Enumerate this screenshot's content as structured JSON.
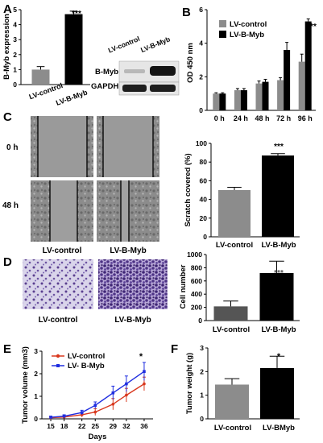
{
  "panels": {
    "A": {
      "letter": "A",
      "chart_data": {
        "type": "bar",
        "categories": [
          "LV-control",
          "LV-B-Myb"
        ],
        "values": [
          1.0,
          4.7
        ],
        "errors": [
          0.2,
          0.2
        ],
        "ylabel": "B-Myb expression",
        "ylim": [
          0,
          5
        ],
        "yticks": [
          "0",
          "1",
          "2",
          "3",
          "4",
          "5"
        ],
        "significance": "***"
      },
      "blot": {
        "lane_labels": [
          "LV-control",
          "LV-B-Myb"
        ],
        "rows": [
          "B-Myb",
          "GAPDH"
        ]
      }
    },
    "B": {
      "letter": "B",
      "chart_data": {
        "type": "bar",
        "categories": [
          "0 h",
          "24 h",
          "48 h",
          "72 h",
          "96 h"
        ],
        "series": [
          {
            "name": "LV-control",
            "values": [
              1.0,
              1.2,
              1.6,
              1.8,
              2.9
            ],
            "errors": [
              0.05,
              0.1,
              0.15,
              0.15,
              0.45
            ],
            "color": "#8c8c8c"
          },
          {
            "name": "LV-B-Myb",
            "values": [
              1.0,
              1.2,
              1.7,
              3.6,
              5.3
            ],
            "errors": [
              0.05,
              0.1,
              0.15,
              0.45,
              0.15
            ],
            "color": "#000000"
          }
        ],
        "ylabel": "OD 450 nm",
        "ylim": [
          0,
          6
        ],
        "yticks": [
          "0",
          "2",
          "4",
          "6"
        ],
        "significance": "***"
      }
    },
    "C": {
      "letter": "C",
      "row_labels": [
        "0 h",
        "48 h"
      ],
      "col_labels": [
        "LV-control",
        "LV-B-Myb"
      ],
      "chart_data": {
        "type": "bar",
        "categories": [
          "LV-control",
          "LV-B-Myb"
        ],
        "values": [
          50,
          87
        ],
        "errors": [
          3,
          2
        ],
        "ylabel": "Scratch covered (%)",
        "ylim": [
          0,
          100
        ],
        "yticks": [
          "0",
          "20",
          "40",
          "60",
          "80",
          "100"
        ],
        "significance": "***"
      }
    },
    "D": {
      "letter": "D",
      "col_labels": [
        "LV-control",
        "LV-B-Myb"
      ],
      "chart_data": {
        "type": "bar",
        "categories": [
          "LV-control",
          "LV-B-Myb"
        ],
        "values": [
          215,
          720
        ],
        "errors": [
          80,
          180
        ],
        "ylabel": "Cell number",
        "ylim": [
          0,
          1000
        ],
        "yticks": [
          "0",
          "200",
          "400",
          "600",
          "800",
          "1000"
        ],
        "significance": "***"
      }
    },
    "E": {
      "letter": "E",
      "chart_data": {
        "type": "line",
        "x": [
          15,
          18,
          22,
          25,
          29,
          32,
          36
        ],
        "series": [
          {
            "name": "LV-control",
            "values": [
              0.05,
              0.08,
              0.18,
              0.3,
              0.65,
              1.05,
              1.55
            ],
            "errors": [
              0.05,
              0.06,
              0.1,
              0.15,
              0.25,
              0.3,
              0.3
            ],
            "color": "#d9381e"
          },
          {
            "name": "LV- B-Myb",
            "values": [
              0.07,
              0.12,
              0.28,
              0.6,
              1.15,
              1.55,
              2.1
            ],
            "errors": [
              0.05,
              0.06,
              0.1,
              0.15,
              0.3,
              0.35,
              0.4
            ],
            "color": "#1f2ee0"
          }
        ],
        "xlabel": "Days",
        "ylabel": "Tumor volume (mm3)",
        "ylim": [
          0,
          3
        ],
        "yticks": [
          "0",
          "1",
          "2",
          "3"
        ],
        "significance": "*"
      }
    },
    "F": {
      "letter": "F",
      "chart_data": {
        "type": "bar",
        "categories": [
          "LV-control",
          "LV-BMyb"
        ],
        "values": [
          1.45,
          2.15
        ],
        "errors": [
          0.25,
          0.5
        ],
        "ylabel": "Tumor weight (g)",
        "ylim": [
          0,
          3
        ],
        "yticks": [
          "0",
          "1",
          "2",
          "3"
        ],
        "significance": "*"
      }
    }
  }
}
